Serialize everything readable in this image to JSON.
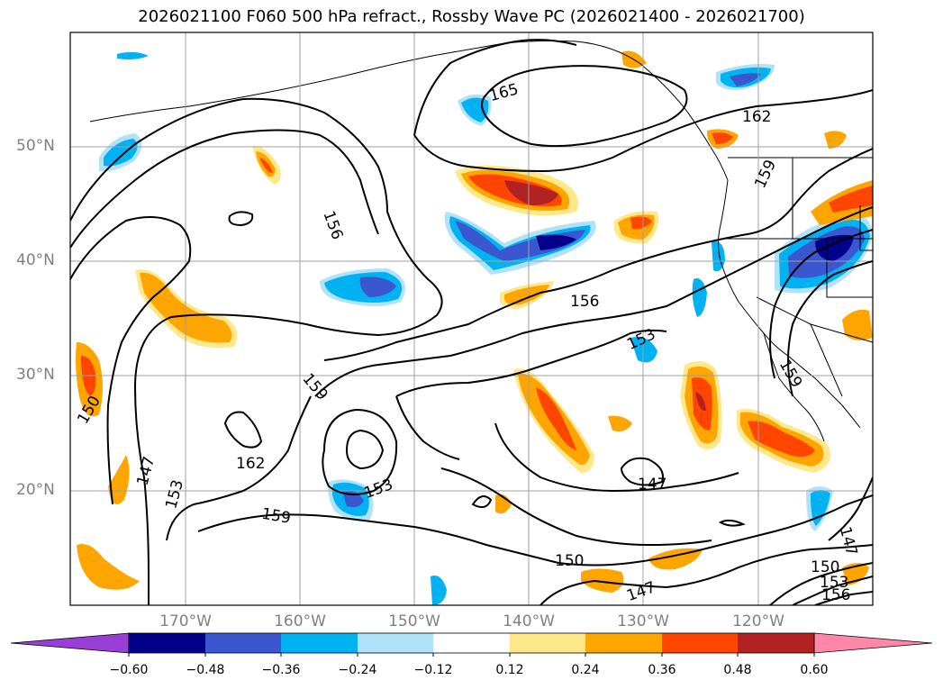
{
  "title": "2026021100 F060 500 hPa refract., Rossby Wave PC (2026021400 - 2026021700)",
  "map": {
    "lat_labels": [
      "50°N",
      "40°N",
      "30°N",
      "20°N"
    ],
    "lon_labels": [
      "170°W",
      "160°W",
      "150°W",
      "140°W",
      "130°W",
      "120°W"
    ],
    "contour_labels": [
      "165",
      "162",
      "156",
      "159",
      "156",
      "153",
      "159",
      "162",
      "153",
      "159",
      "150",
      "147",
      "153",
      "150",
      "147",
      "147",
      "150",
      "153",
      "156",
      "147",
      "159"
    ],
    "contour_color": "#000000",
    "grid_color": "#a0a0a0"
  },
  "colorbar": {
    "tick_labels": [
      "−0.60",
      "−0.48",
      "−0.36",
      "−0.24",
      "−0.12",
      "0.12",
      "0.24",
      "0.36",
      "0.48",
      "0.60"
    ],
    "colors": [
      "#9a3fd6",
      "#00008b",
      "#3a57d0",
      "#00b2f2",
      "#b0e2fa",
      "#ffffff",
      "#ffe88a",
      "#ffa500",
      "#ff4500",
      "#b22222",
      "#ff88aa"
    ]
  }
}
